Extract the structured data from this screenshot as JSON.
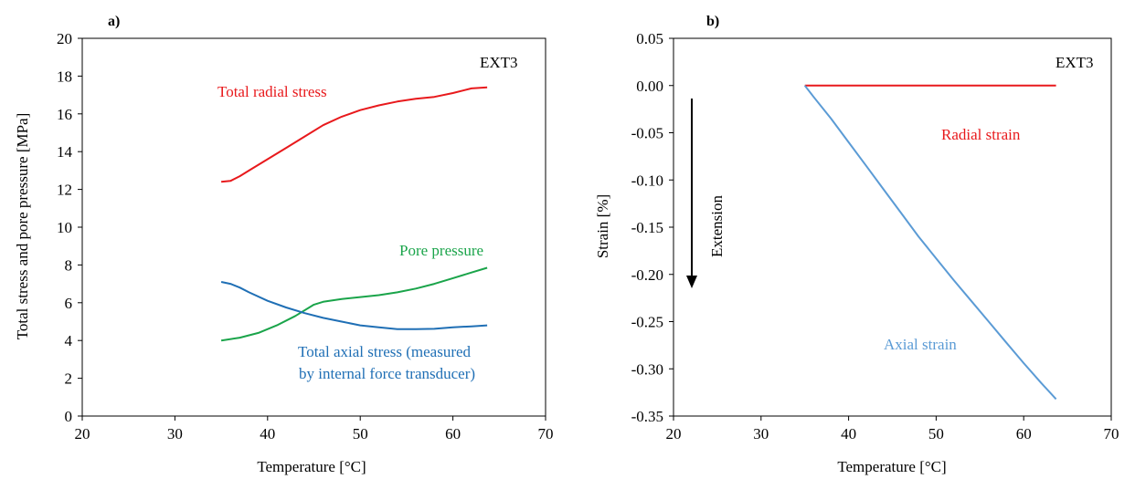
{
  "chart_data": [
    {
      "panel_label": "a)",
      "type": "line",
      "annotation": "EXT3",
      "xlabel": "Temperature [°C]",
      "ylabel": "Total stress and pore pressure [MPa]",
      "xlim": [
        20,
        70
      ],
      "ylim": [
        0,
        20
      ],
      "x_ticks": [
        20,
        30,
        40,
        50,
        60,
        70
      ],
      "y_ticks": [
        0,
        2,
        4,
        6,
        8,
        10,
        12,
        14,
        16,
        18,
        20
      ],
      "grid": false,
      "series": [
        {
          "name": "Total radial stress",
          "color": "#e8191c",
          "x": [
            35,
            36,
            37,
            38,
            40,
            42,
            44,
            46,
            48,
            50,
            52,
            54,
            56,
            58,
            60,
            62,
            63.7
          ],
          "y": [
            12.4,
            12.45,
            12.7,
            13.0,
            13.6,
            14.2,
            14.8,
            15.4,
            15.85,
            16.2,
            16.45,
            16.65,
            16.8,
            16.9,
            17.1,
            17.35,
            17.4
          ]
        },
        {
          "name": "Pore pressure",
          "color": "#1aa44a",
          "x": [
            35,
            37,
            39,
            41,
            43,
            45,
            46,
            48,
            50,
            52,
            54,
            56,
            58,
            60,
            62,
            63.7
          ],
          "y": [
            4.0,
            4.15,
            4.4,
            4.8,
            5.3,
            5.9,
            6.05,
            6.2,
            6.3,
            6.4,
            6.55,
            6.75,
            7.0,
            7.3,
            7.6,
            7.85
          ]
        },
        {
          "name": "Total axial stress (measured by internal force transducer)",
          "color": "#1f6fb5",
          "x": [
            35,
            36,
            37,
            38,
            40,
            42,
            44,
            46,
            48,
            50,
            52,
            54,
            56,
            58,
            60,
            62,
            63.7
          ],
          "y": [
            7.1,
            7.0,
            6.8,
            6.55,
            6.1,
            5.75,
            5.45,
            5.2,
            5.0,
            4.8,
            4.7,
            4.6,
            4.6,
            4.62,
            4.7,
            4.75,
            4.8
          ]
        }
      ]
    },
    {
      "panel_label": "b)",
      "type": "line",
      "annotation": "EXT3",
      "arrow_label": "Extension",
      "xlabel": "Temperature [°C]",
      "ylabel": "Strain [%]",
      "xlim": [
        20,
        70
      ],
      "ylim": [
        -0.35,
        0.05
      ],
      "x_ticks": [
        20,
        30,
        40,
        50,
        60,
        70
      ],
      "y_ticks": [
        0.05,
        0.0,
        -0.05,
        -0.1,
        -0.15,
        -0.2,
        -0.25,
        -0.3,
        -0.35
      ],
      "y_tick_labels": [
        "0.05",
        "0.00",
        "-0.05",
        "-0.10",
        "-0.15",
        "-0.20",
        "-0.25",
        "-0.30",
        "-0.35"
      ],
      "grid": false,
      "series": [
        {
          "name": "Radial strain",
          "color": "#e8191c",
          "x": [
            35,
            40,
            45,
            50,
            55,
            60,
            63.7
          ],
          "y": [
            0.0,
            0.0,
            0.0,
            0.0,
            0.0,
            0.0,
            0.0
          ]
        },
        {
          "name": "Axial strain",
          "color": "#5b9bd5",
          "x": [
            35,
            36,
            38,
            40,
            42,
            44,
            46,
            48,
            50,
            52,
            54,
            56,
            58,
            60,
            62,
            63.7
          ],
          "y": [
            0.0,
            -0.012,
            -0.035,
            -0.06,
            -0.085,
            -0.11,
            -0.135,
            -0.16,
            -0.183,
            -0.206,
            -0.228,
            -0.25,
            -0.272,
            -0.294,
            -0.315,
            -0.332
          ]
        }
      ]
    }
  ]
}
